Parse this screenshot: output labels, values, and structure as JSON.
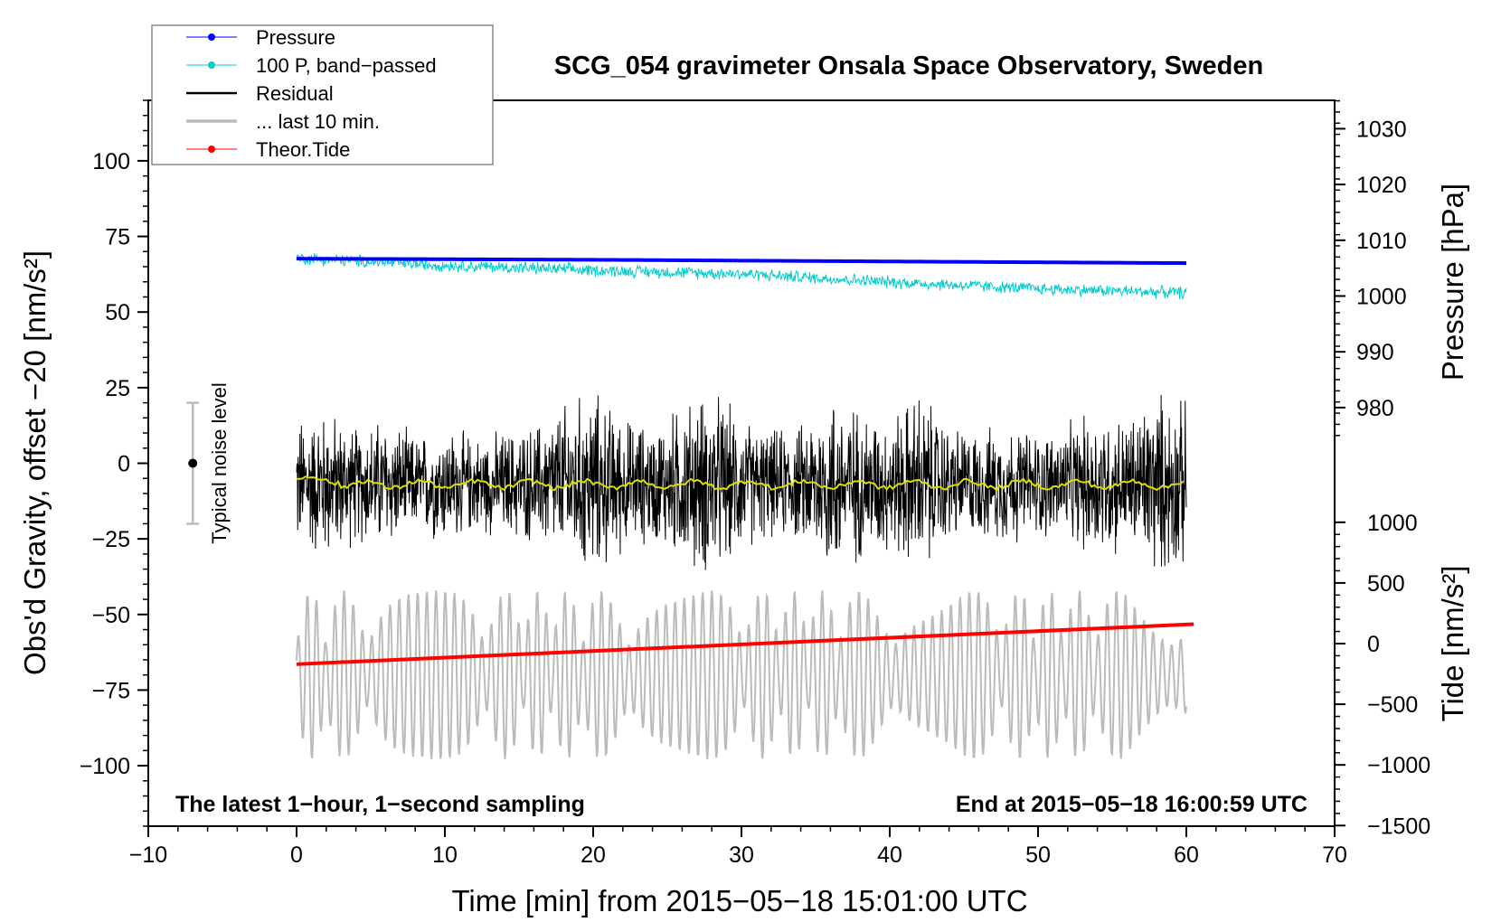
{
  "chart_data": {
    "type": "line",
    "title": "SCG_054 gravimeter Onsala Space Observatory, Sweden",
    "xlabel": "Time [min] from 2015−05−18 15:01:00 UTC",
    "ylabel_left": "Obs'd Gravity, offset −20 [nm/s²]",
    "ylabel_right_top": "Pressure [hPa]",
    "ylabel_right_bottom": "Tide [nm/s²]",
    "xlim": [
      -10,
      70
    ],
    "ylim_left": [
      -120,
      120
    ],
    "x_ticks": [
      "−10",
      "0",
      "10",
      "20",
      "30",
      "40",
      "50",
      "60",
      "70"
    ],
    "x_tick_values": [
      -10,
      0,
      10,
      20,
      30,
      40,
      50,
      60,
      70
    ],
    "y_left_ticks": [
      "100",
      "75",
      "50",
      "25",
      "0",
      "−25",
      "−50",
      "−75",
      "−100"
    ],
    "y_left_tick_values": [
      100,
      75,
      50,
      25,
      0,
      -25,
      -50,
      -75,
      -100
    ],
    "pressure_ticks": [
      "1030",
      "1020",
      "1010",
      "1000",
      "990",
      "980"
    ],
    "pressure_tick_values": [
      1030,
      1020,
      1010,
      1000,
      990,
      980
    ],
    "tide_ticks": [
      "1000",
      "500",
      "0",
      "−500",
      "−1000",
      "−1500"
    ],
    "tide_tick_values": [
      1000,
      500,
      0,
      -500,
      -1000,
      -1500
    ],
    "legend_position": "top-left",
    "legend": [
      {
        "label": "Pressure",
        "color": "#0000ff",
        "style": "line-dot"
      },
      {
        "label": "100 P, band−passed",
        "color": "#00cccc",
        "style": "line-dot"
      },
      {
        "label": "Residual",
        "color": "#000000",
        "style": "line"
      },
      {
        "label": "... last 10 min.",
        "color": "#bbbbbb",
        "style": "thick-line"
      },
      {
        "label": "Theor.Tide",
        "color": "#ff0000",
        "style": "line-dot"
      }
    ],
    "series": {
      "pressure_hpa": {
        "x": [
          0,
          20,
          40,
          60
        ],
        "values": [
          1006.7,
          1006.5,
          1006.2,
          1005.9
        ]
      },
      "pressure_bandpassed_trend_hpa": {
        "x": [
          0,
          10,
          20,
          30,
          40,
          50,
          60
        ],
        "values": [
          1006.8,
          1005.5,
          1004.6,
          1004.0,
          1002.5,
          1001.3,
          1000.6
        ],
        "amplitude": 1.3
      },
      "residual_mean_nm_s2": -7,
      "residual_envelope_x": [
        0,
        2,
        4,
        6,
        8,
        10,
        12,
        14,
        16,
        18,
        20,
        22,
        24,
        26,
        28,
        30,
        32,
        34,
        36,
        38,
        40,
        42,
        44,
        46,
        48,
        50,
        52,
        54,
        56,
        58,
        60
      ],
      "residual_envelope_amplitude": [
        25,
        28,
        22,
        25,
        18,
        22,
        18,
        20,
        22,
        30,
        35,
        25,
        22,
        30,
        35,
        25,
        20,
        22,
        35,
        28,
        25,
        35,
        22,
        20,
        22,
        20,
        22,
        28,
        25,
        35,
        30
      ],
      "last_10_min_center_nm_s2": -70,
      "last_10_min_amplitude": 28,
      "theoretical_tide": {
        "x": [
          0,
          60.5
        ],
        "values": [
          -170,
          160
        ]
      }
    },
    "noise_bar": {
      "label": "Typical noise level",
      "x": -7,
      "center": 0,
      "half_range": 20
    }
  },
  "annotations": {
    "left": "The latest 1−hour, 1−second sampling",
    "right": "End at 2015−05−18 16:00:59 UTC"
  }
}
